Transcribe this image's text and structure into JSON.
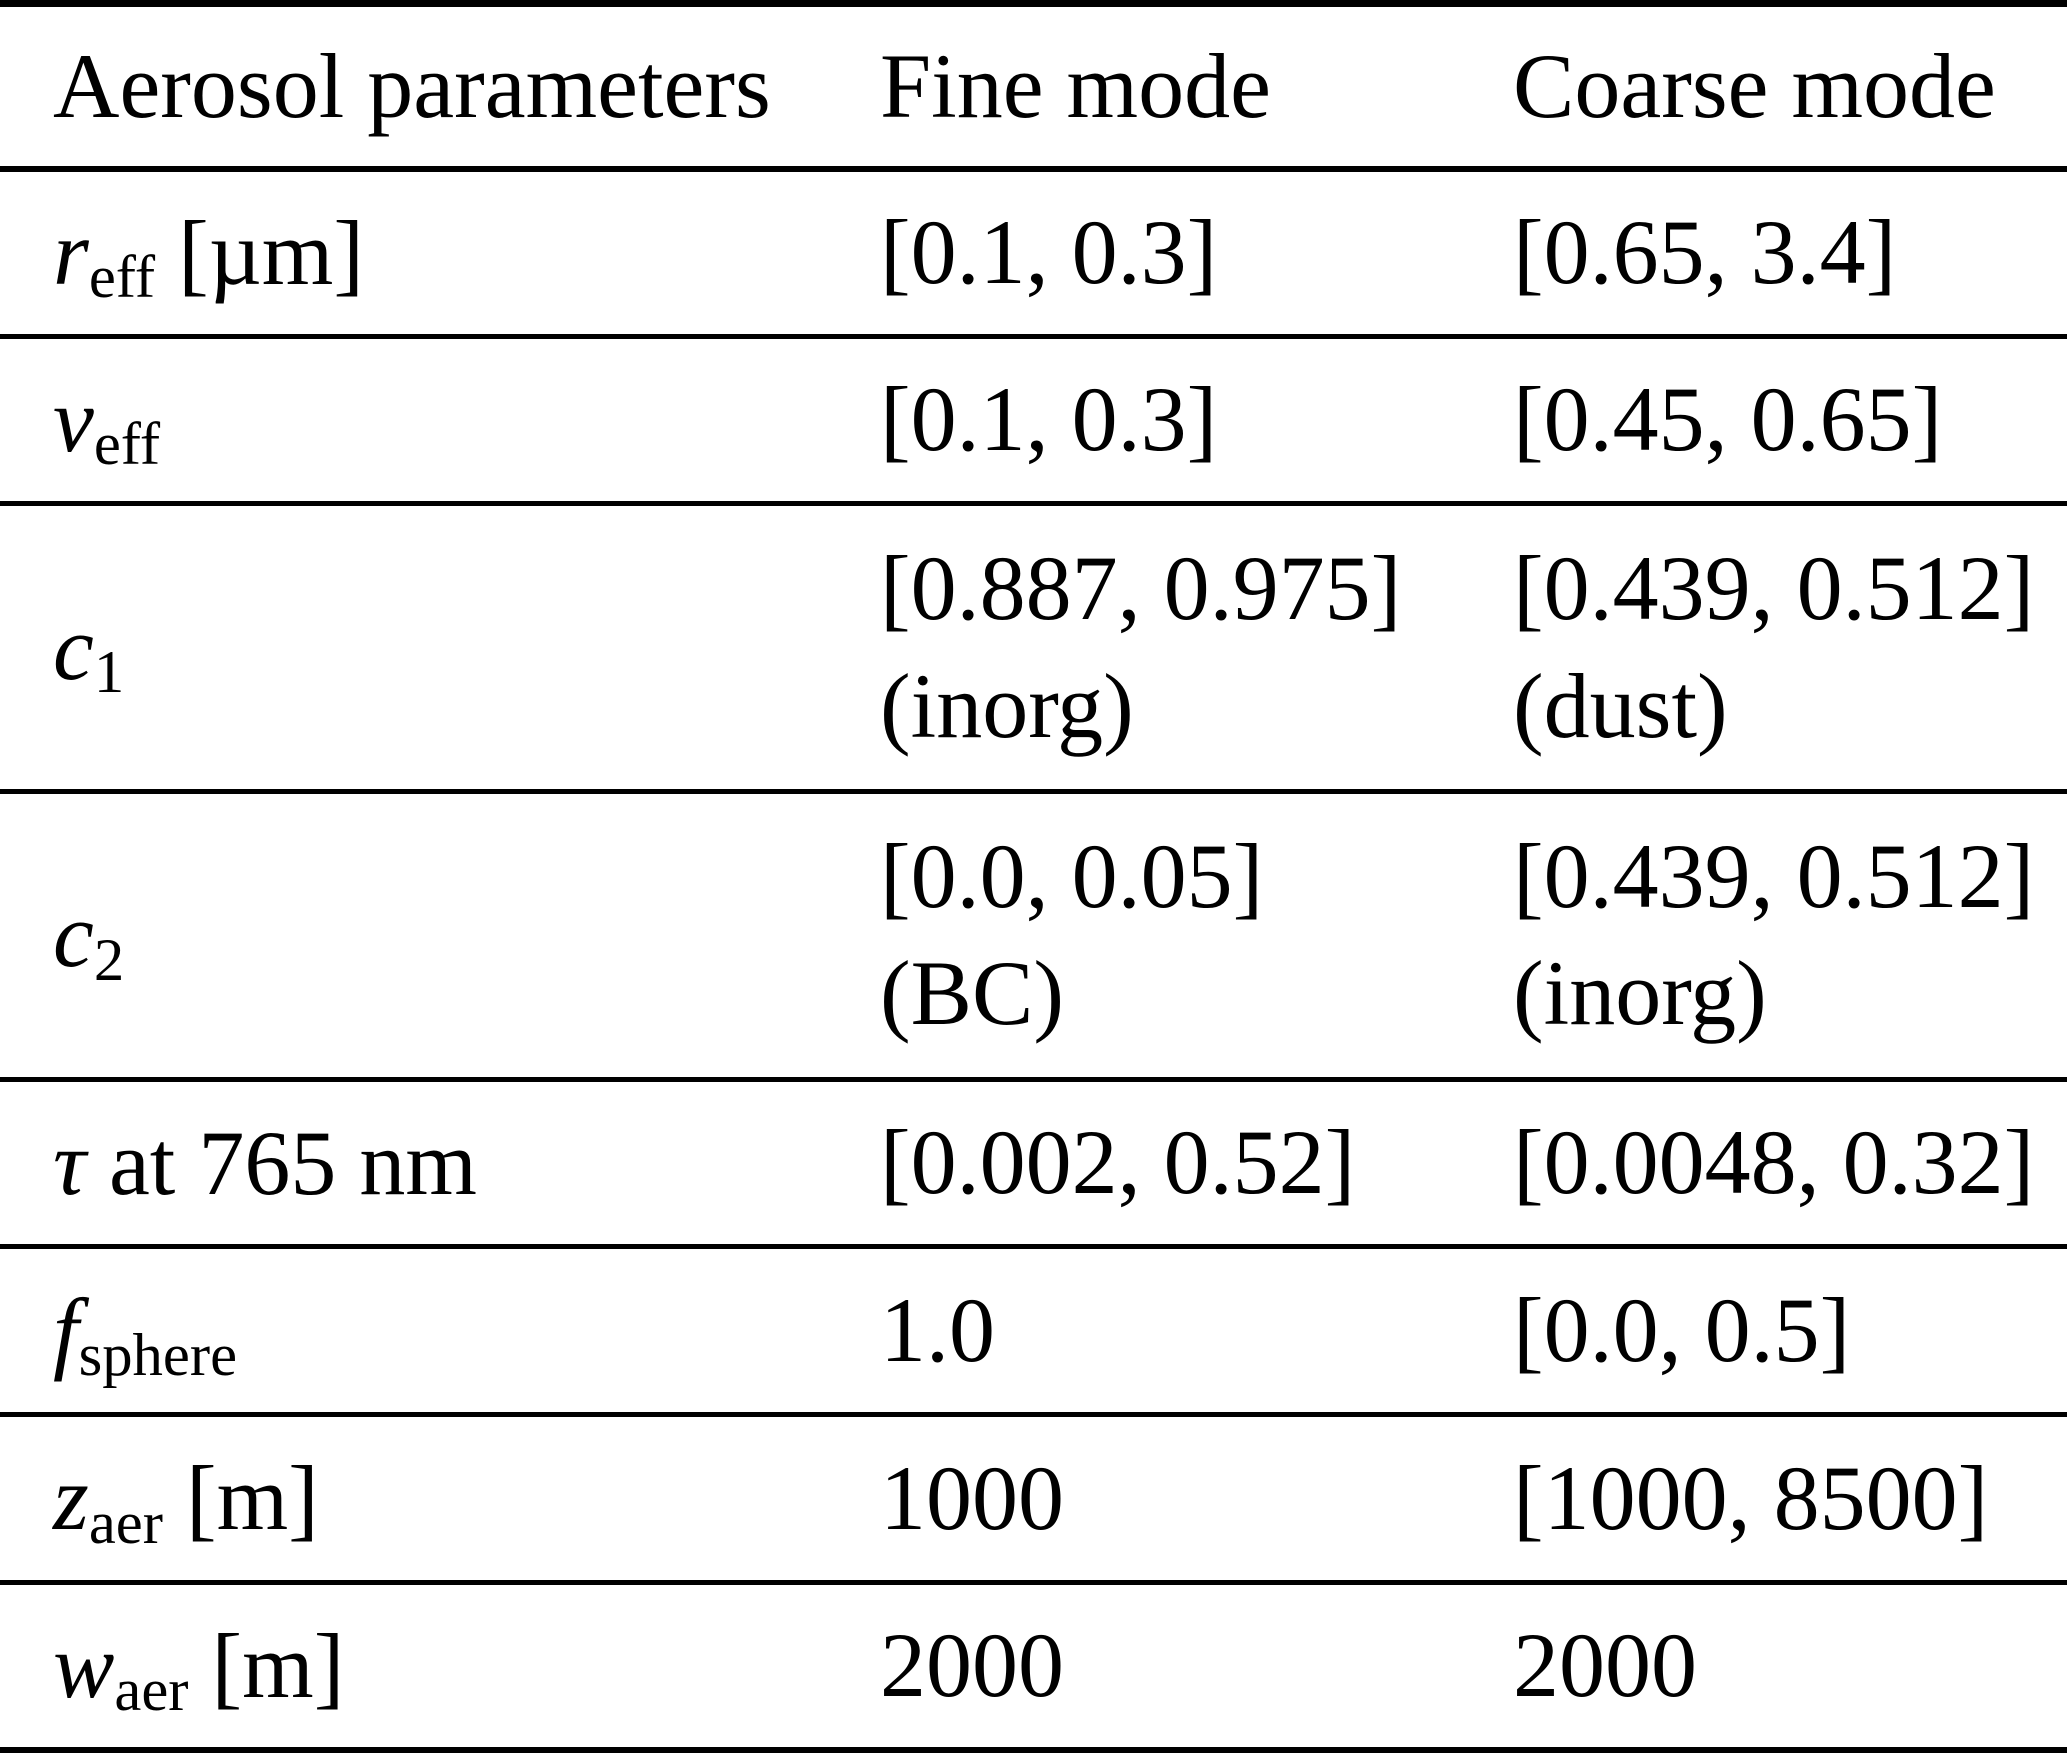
{
  "table": {
    "header": {
      "param": "Aerosol parameters",
      "fine": "Fine mode",
      "coarse": "Coarse mode"
    },
    "rows": [
      {
        "param": {
          "base": "r",
          "sub": "eff",
          "suffix": " [µm]"
        },
        "fine": {
          "value": "[0.1, 0.3]",
          "note": ""
        },
        "coarse": {
          "value": "[0.65, 3.4]",
          "note": ""
        }
      },
      {
        "param": {
          "base": "v",
          "sub": "eff",
          "suffix": ""
        },
        "fine": {
          "value": "[0.1, 0.3]",
          "note": ""
        },
        "coarse": {
          "value": "[0.45, 0.65]",
          "note": ""
        }
      },
      {
        "param": {
          "base": "c",
          "sub": "1",
          "suffix": ""
        },
        "fine": {
          "value": "[0.887, 0.975]",
          "note": "(inorg)"
        },
        "coarse": {
          "value": "[0.439, 0.512]",
          "note": "(dust)"
        }
      },
      {
        "param": {
          "base": "c",
          "sub": "2",
          "suffix": ""
        },
        "fine": {
          "value": "[0.0, 0.05]",
          "note": "(BC)"
        },
        "coarse": {
          "value": "[0.439, 0.512]",
          "note": "(inorg)"
        }
      },
      {
        "param": {
          "base": "τ",
          "sub": "",
          "suffix": " at 765 nm"
        },
        "fine": {
          "value": "[0.002, 0.52]",
          "note": ""
        },
        "coarse": {
          "value": "[0.0048, 0.32]",
          "note": ""
        }
      },
      {
        "param": {
          "base": "f",
          "sub": "sphere",
          "suffix": ""
        },
        "fine": {
          "value": "1.0",
          "note": ""
        },
        "coarse": {
          "value": "[0.0, 0.5]",
          "note": ""
        }
      },
      {
        "param": {
          "base": "z",
          "sub": "aer",
          "suffix": " [m]"
        },
        "fine": {
          "value": "1000",
          "note": ""
        },
        "coarse": {
          "value": "[1000, 8500]",
          "note": ""
        }
      },
      {
        "param": {
          "base": "w",
          "sub": "aer",
          "suffix": " [m]"
        },
        "fine": {
          "value": "2000",
          "note": ""
        },
        "coarse": {
          "value": "2000",
          "note": ""
        }
      }
    ]
  },
  "colors": {
    "text": "#000000",
    "background": "#ffffff",
    "rule": "#000000"
  },
  "chart_data": {
    "type": "table",
    "columns": [
      "Aerosol parameters",
      "Fine mode",
      "Coarse mode"
    ],
    "rows": [
      [
        "r_eff [µm]",
        "[0.1, 0.3]",
        "[0.65, 3.4]"
      ],
      [
        "v_eff",
        "[0.1, 0.3]",
        "[0.45, 0.65]"
      ],
      [
        "c_1",
        "[0.887, 0.975] (inorg)",
        "[0.439, 0.512] (dust)"
      ],
      [
        "c_2",
        "[0.0, 0.05] (BC)",
        "[0.439, 0.512] (inorg)"
      ],
      [
        "τ at 765 nm",
        "[0.002, 0.52]",
        "[0.0048, 0.32]"
      ],
      [
        "f_sphere",
        "1.0",
        "[0.0, 0.5]"
      ],
      [
        "z_aer [m]",
        "1000",
        "[1000, 8500]"
      ],
      [
        "w_aer [m]",
        "2000",
        "2000"
      ]
    ]
  }
}
